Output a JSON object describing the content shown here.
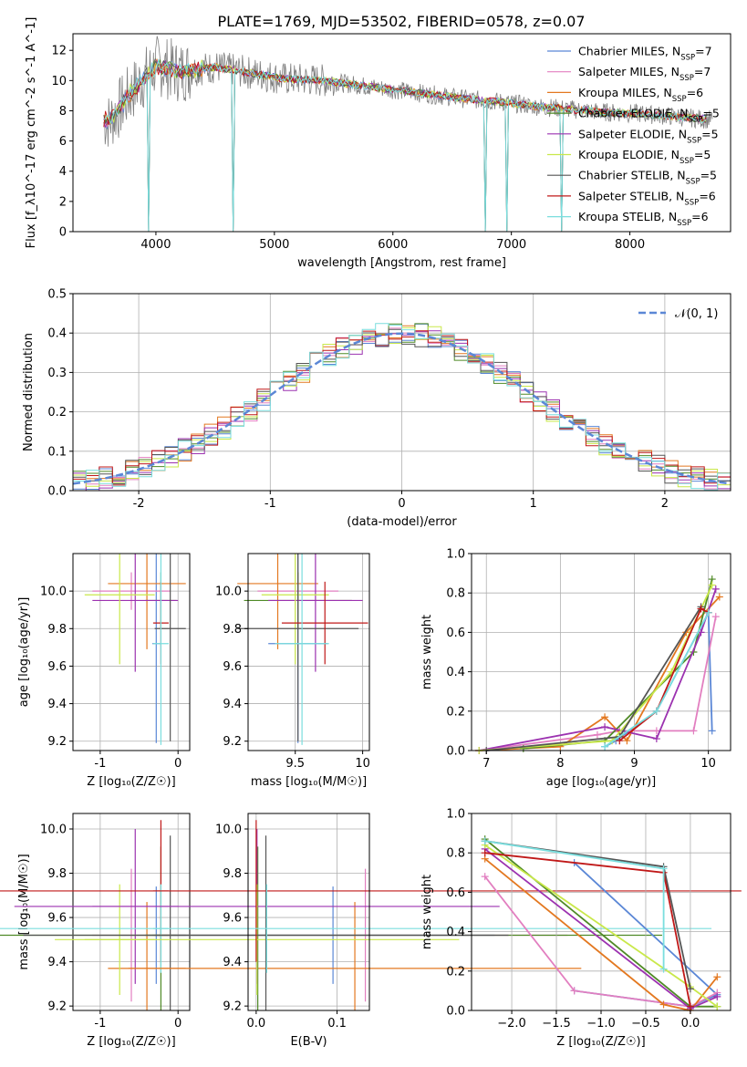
{
  "title": "PLATE=1769, MJD=53502, FIBERID=0578, z=0.07",
  "colors": {
    "Chabrier MILES": "#5b87d6",
    "Salpeter MILES": "#e27fc0",
    "Kroupa MILES": "#e37820",
    "Chabrier ELODIE": "#4f8a26",
    "Salpeter ELODIE": "#9c32b0",
    "Kroupa ELODIE": "#c9e84a",
    "Chabrier STELIB": "#555555",
    "Salpeter STELIB": "#c01818",
    "Kroupa STELIB": "#7adede"
  },
  "chart_data": [
    {
      "id": "spectrum",
      "type": "line",
      "xlabel": "wavelength [Angstrom, rest frame]",
      "ylabel": "Flux [f_λ10^-17 erg cm^-2 s^-1 A^-1]",
      "xticks": [
        4000,
        5000,
        6000,
        7000,
        8000
      ],
      "yticks": [
        0,
        2,
        4,
        6,
        8,
        10,
        12
      ],
      "xlim": [
        3300,
        8850
      ],
      "ylim": [
        0,
        13.1
      ],
      "legend_position": "top-right",
      "legend": [
        {
          "name": "Chabrier MILES",
          "nssp": "7"
        },
        {
          "name": "Salpeter MILES",
          "nssp": "7"
        },
        {
          "name": "Kroupa MILES",
          "nssp": "6"
        },
        {
          "name": "Chabrier ELODIE",
          "nssp": "5"
        },
        {
          "name": "Salpeter ELODIE",
          "nssp": "5"
        },
        {
          "name": "Kroupa ELODIE",
          "nssp": "5"
        },
        {
          "name": "Chabrier STELIB",
          "nssp": "5"
        },
        {
          "name": "Salpeter STELIB",
          "nssp": "6"
        },
        {
          "name": "Kroupa STELIB",
          "nssp": "6"
        }
      ],
      "data_series": {
        "x": [
          3600,
          3800,
          4000,
          4200,
          4500,
          4800,
          5100,
          5400,
          5700,
          6000,
          6300,
          6600,
          6900,
          7200,
          7500,
          7800,
          8100,
          8400,
          8700
        ],
        "y": [
          7.2,
          9.3,
          11.0,
          10.6,
          10.9,
          10.5,
          10.1,
          10.0,
          9.7,
          9.4,
          9.1,
          8.8,
          8.6,
          8.3,
          8.1,
          7.9,
          7.8,
          7.6,
          7.4
        ]
      }
    },
    {
      "id": "residuals",
      "type": "line",
      "xlabel": "(data-model)/error",
      "ylabel": "Normed distribution",
      "xticks": [
        -2,
        -1,
        0,
        1,
        2
      ],
      "yticks": [
        0.0,
        0.1,
        0.2,
        0.3,
        0.4,
        0.5
      ],
      "xlim": [
        -2.5,
        2.5
      ],
      "ylim": [
        0,
        0.5
      ],
      "grid": true,
      "legend_position": "top-right",
      "legend_label": "𝒩(0, 1)",
      "bin_width": 0.1
    },
    {
      "id": "age-vs-Z",
      "type": "scatter",
      "xlabel": "Z [log₁₀(Z/Z☉)]",
      "ylabel": "age  [log₁₀(age/yr)]",
      "xticks": [
        -1,
        0
      ],
      "yticks": [
        9.2,
        9.4,
        9.6,
        9.8,
        10.0
      ],
      "xlim": [
        -1.35,
        0.15
      ],
      "ylim": [
        9.15,
        10.2
      ],
      "grid": true
    },
    {
      "id": "age-vs-mass",
      "type": "scatter",
      "xlabel": "mass [log₁₀(M/M☉)]",
      "xticks": [
        9.5,
        10.0
      ],
      "yticks": [
        9.2,
        9.4,
        9.6,
        9.8,
        10.0
      ],
      "xlim": [
        9.15,
        10.05
      ],
      "ylim": [
        9.15,
        10.2
      ],
      "grid": true
    },
    {
      "id": "weight-vs-age",
      "type": "line",
      "xlabel": "age  [log₁₀(age/yr)]",
      "ylabel": "mass weight",
      "xticks": [
        7,
        8,
        9,
        10
      ],
      "yticks": [
        0.0,
        0.2,
        0.4,
        0.6,
        0.8,
        1.0
      ],
      "xlim": [
        6.8,
        10.3
      ],
      "ylim": [
        0,
        1
      ],
      "grid": true
    },
    {
      "id": "mass-vs-Z",
      "type": "scatter",
      "xlabel": "Z [log₁₀(Z/Z☉)]",
      "ylabel": "mass [log₁₀(M/M☉)]",
      "xticks": [
        -1,
        0
      ],
      "yticks": [
        9.2,
        9.4,
        9.6,
        9.8,
        10.0
      ],
      "xlim": [
        -1.35,
        0.15
      ],
      "ylim": [
        9.18,
        10.07
      ],
      "grid": true
    },
    {
      "id": "mass-vs-ebv",
      "type": "scatter",
      "xlabel": "E(B-V)",
      "xticks": [
        0.0,
        0.1
      ],
      "yticks": [
        9.2,
        9.4,
        9.6,
        9.8,
        10.0
      ],
      "xlim": [
        -0.01,
        0.14
      ],
      "ylim": [
        9.18,
        10.07
      ],
      "grid": true
    },
    {
      "id": "weight-vs-Z",
      "type": "line",
      "xlabel": "Z [log₁₀(Z/Z☉)]",
      "ylabel": "mass weight",
      "xticks": [
        -2.0,
        -1.5,
        -1.0,
        -0.5,
        0.0
      ],
      "yticks": [
        0.0,
        0.2,
        0.4,
        0.6,
        0.8,
        1.0
      ],
      "xlim": [
        -2.45,
        0.45
      ],
      "ylim": [
        0,
        1
      ],
      "grid": true
    }
  ],
  "models": [
    {
      "name": "Chabrier MILES",
      "Z": -0.28,
      "Zerr": 0.05,
      "age": 9.72,
      "ageerr": 0.53,
      "mass": 9.52,
      "masserr": 0.22,
      "ebv": 0.095,
      "ebverr": 0.2,
      "w_age": [
        [
          8.6,
          0.02
        ],
        [
          8.75,
          0.05
        ],
        [
          9.3,
          0.2
        ],
        [
          10.0,
          0.7
        ],
        [
          10.05,
          0.1
        ]
      ],
      "w_Z": [
        [
          -1.3,
          0.1
        ],
        [
          0.0,
          0.02
        ],
        [
          0.3,
          0.08
        ],
        [
          -1.3,
          0.75
        ]
      ]
    },
    {
      "name": "Salpeter MILES",
      "Z": -0.6,
      "Zerr": 0.5,
      "age": 10.0,
      "ageerr": 0.1,
      "mass": 9.52,
      "masserr": 0.3,
      "ebv": 0.135,
      "ebverr": 0.25,
      "w_age": [
        [
          6.9,
          0.0
        ],
        [
          8.5,
          0.08
        ],
        [
          8.8,
          0.1
        ],
        [
          9.3,
          0.1
        ],
        [
          9.8,
          0.1
        ],
        [
          10.1,
          0.68
        ]
      ],
      "w_Z": [
        [
          -2.3,
          0.68
        ],
        [
          -1.3,
          0.1
        ],
        [
          0.0,
          0.02
        ],
        [
          0.3,
          0.09
        ]
      ]
    },
    {
      "name": "Kroupa MILES",
      "Z": -0.4,
      "Zerr": 0.5,
      "age": 10.04,
      "ageerr": 0.35,
      "mass": 9.37,
      "masserr": 0.3,
      "ebv": 0.122,
      "ebverr": 0.28,
      "w_age": [
        [
          6.9,
          0.0
        ],
        [
          8.0,
          0.02
        ],
        [
          8.6,
          0.17
        ],
        [
          8.9,
          0.05
        ],
        [
          9.7,
          0.6
        ],
        [
          10.15,
          0.78
        ]
      ],
      "w_Z": [
        [
          -2.3,
          0.77
        ],
        [
          -0.3,
          0.03
        ],
        [
          0.0,
          0.0
        ],
        [
          0.3,
          0.17
        ]
      ]
    },
    {
      "name": "Chabrier ELODIE",
      "Z": -0.22,
      "Zerr": 0.2,
      "age": 9.95,
      "ageerr": 0.15,
      "mass": 9.52,
      "masserr": 0.4,
      "ebv": 0.002,
      "ebverr": 0.5,
      "w_age": [
        [
          7.5,
          0.01
        ],
        [
          8.6,
          0.05
        ],
        [
          9.8,
          0.5
        ],
        [
          10.05,
          0.87
        ]
      ],
      "w_Z": [
        [
          -2.3,
          0.87
        ],
        [
          0.0,
          0.02
        ],
        [
          0.3,
          0.02
        ]
      ]
    },
    {
      "name": "Salpeter ELODIE",
      "Z": -0.55,
      "Zerr": 0.55,
      "age": 9.95,
      "ageerr": 0.38,
      "mass": 9.65,
      "masserr": 0.35,
      "ebv": 0.001,
      "ebverr": 0.3,
      "w_age": [
        [
          6.9,
          0.0
        ],
        [
          8.6,
          0.12
        ],
        [
          9.3,
          0.06
        ],
        [
          9.9,
          0.6
        ],
        [
          10.1,
          0.82
        ]
      ],
      "w_Z": [
        [
          -2.3,
          0.82
        ],
        [
          0.0,
          0.01
        ],
        [
          0.3,
          0.07
        ]
      ]
    },
    {
      "name": "Kroupa ELODIE",
      "Z": -0.75,
      "Zerr": 0.45,
      "age": 9.98,
      "ageerr": 0.37,
      "mass": 9.5,
      "masserr": 0.25,
      "ebv": 0.001,
      "ebverr": 0.25,
      "w_age": [
        [
          6.9,
          0.0
        ],
        [
          8.7,
          0.05
        ],
        [
          9.5,
          0.4
        ],
        [
          10.05,
          0.84
        ]
      ],
      "w_Z": [
        [
          -2.3,
          0.84
        ],
        [
          0.0,
          0.12
        ],
        [
          0.3,
          0.02
        ]
      ]
    },
    {
      "name": "Chabrier STELIB",
      "Z": -0.1,
      "Zerr": 0.2,
      "age": 9.8,
      "ageerr": 0.6,
      "mass": 9.52,
      "masserr": 0.45,
      "ebv": 0.012,
      "ebverr": 0.3,
      "w_age": [
        [
          7.0,
          0.0
        ],
        [
          8.8,
          0.07
        ],
        [
          9.9,
          0.73
        ]
      ],
      "w_Z": [
        [
          -2.3,
          0.86
        ],
        [
          -0.3,
          0.73
        ],
        [
          0.0,
          0.11
        ]
      ]
    },
    {
      "name": "Salpeter STELIB",
      "Z": -0.22,
      "Zerr": 0.1,
      "age": 9.83,
      "ageerr": 0.22,
      "mass": 9.72,
      "masserr": 0.32,
      "ebv": 0.0,
      "ebverr": 0.6,
      "w_age": [
        [
          8.8,
          0.05
        ],
        [
          9.3,
          0.2
        ],
        [
          9.9,
          0.72
        ],
        [
          10.0,
          0.7
        ]
      ],
      "w_Z": [
        [
          -2.3,
          0.8
        ],
        [
          -0.3,
          0.7
        ],
        [
          0.0,
          0.02
        ]
      ]
    },
    {
      "name": "Kroupa STELIB",
      "Z": -0.22,
      "Zerr": 0.1,
      "age": 9.72,
      "ageerr": 0.54,
      "mass": 9.55,
      "masserr": 0.2,
      "ebv": 0.013,
      "ebverr": 0.55,
      "w_age": [
        [
          8.6,
          0.02
        ],
        [
          9.3,
          0.2
        ],
        [
          10.0,
          0.7
        ]
      ],
      "w_Z": [
        [
          -2.3,
          0.86
        ],
        [
          -0.3,
          0.72
        ],
        [
          -0.3,
          0.21
        ]
      ]
    }
  ]
}
